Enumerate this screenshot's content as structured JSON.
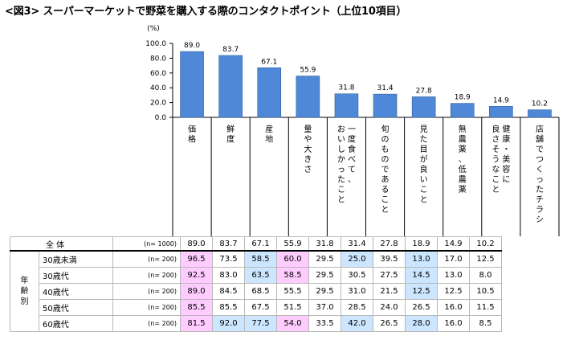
{
  "title": "<図3> スーパーマーケットで野菜を購入する際のコンタクトポイント（上位10項目）",
  "chart_data": {
    "type": "bar",
    "title": "<図3> スーパーマーケットで野菜を購入する際のコンタクトポイント（上位10項目）",
    "ylabel": "(%)",
    "ylim": [
      0,
      100
    ],
    "yticks": [
      "100.0",
      "80.0",
      "60.0",
      "40.0",
      "20.0",
      "0.0"
    ],
    "categories": [
      "価格",
      "鮮度",
      "産地",
      "量や大きさ",
      "一度食べて、おいしかったこと",
      "旬のものであること",
      "見た目が良いこと",
      "無農薬、低農薬",
      "健康・美容に良さそうなこと",
      "店舗でつくったチラシ"
    ],
    "category_lines": [
      [
        "価格"
      ],
      [
        "鮮度"
      ],
      [
        "産地"
      ],
      [
        "量や大きさ"
      ],
      [
        "一度食べて、",
        "おいしかったこと"
      ],
      [
        "旬のものであること"
      ],
      [
        "見た目が良いこと"
      ],
      [
        "無農薬、低農薬"
      ],
      [
        "健康・美容に",
        "良さそうなこと"
      ],
      [
        "店舗でつくったチラシ"
      ]
    ],
    "values": [
      89.0,
      83.7,
      67.1,
      55.9,
      31.8,
      31.4,
      27.8,
      18.9,
      14.9,
      10.2
    ],
    "value_labels": [
      "89.0",
      "83.7",
      "67.1",
      "55.9",
      "31.8",
      "31.4",
      "27.8",
      "18.9",
      "14.9",
      "10.2"
    ],
    "bar_color": "#4f88d6"
  },
  "table": {
    "total": {
      "label": "全 体",
      "n": "(n= 1000)",
      "values": [
        "89.0",
        "83.7",
        "67.1",
        "55.9",
        "31.8",
        "31.4",
        "27.8",
        "18.9",
        "14.9",
        "10.2"
      ]
    },
    "group_label": "年齢別",
    "rows": [
      {
        "label": "30歳未満",
        "n": "(n= 200)",
        "values": [
          "96.5",
          "73.5",
          "58.5",
          "60.0",
          "29.5",
          "25.0",
          "39.5",
          "13.0",
          "17.0",
          "12.5"
        ],
        "highlight": [
          "pink",
          "",
          "blue",
          "pink",
          "",
          "blue",
          "",
          "blue",
          "",
          ""
        ]
      },
      {
        "label": "30歳代",
        "n": "(n= 200)",
        "values": [
          "92.5",
          "83.0",
          "63.5",
          "58.5",
          "29.5",
          "30.5",
          "27.5",
          "14.5",
          "13.0",
          "8.0"
        ],
        "highlight": [
          "pink",
          "",
          "blue",
          "pink",
          "",
          "",
          "",
          "blue",
          "",
          ""
        ]
      },
      {
        "label": "40歳代",
        "n": "(n= 200)",
        "values": [
          "89.0",
          "84.5",
          "68.5",
          "55.5",
          "29.5",
          "31.0",
          "21.5",
          "12.5",
          "12.5",
          "10.5"
        ],
        "highlight": [
          "pink",
          "",
          "",
          "",
          "",
          "",
          "",
          "blue",
          "",
          ""
        ]
      },
      {
        "label": "50歳代",
        "n": "(n= 200)",
        "values": [
          "85.5",
          "85.5",
          "67.5",
          "51.5",
          "37.0",
          "28.5",
          "24.0",
          "26.5",
          "16.0",
          "11.5"
        ],
        "highlight": [
          "pink",
          "",
          "",
          "",
          "",
          "",
          "",
          "",
          "",
          ""
        ]
      },
      {
        "label": "60歳代",
        "n": "(n= 200)",
        "values": [
          "81.5",
          "92.0",
          "77.5",
          "54.0",
          "33.5",
          "42.0",
          "26.5",
          "28.0",
          "16.0",
          "8.5"
        ],
        "highlight": [
          "pink",
          "blue",
          "blue",
          "pink",
          "",
          "blue",
          "",
          "blue",
          "",
          ""
        ]
      }
    ],
    "highlight_colors": {
      "pink": "#ffccff",
      "blue": "#cce6ff"
    }
  }
}
